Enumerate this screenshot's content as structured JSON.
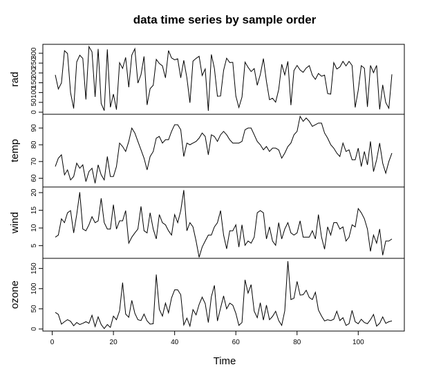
{
  "title": "data time series by sample order",
  "chart_data": {
    "type": "line",
    "title": "data time series by sample order",
    "xlabel": "Time",
    "xlim": [
      1,
      111
    ],
    "xticks": [
      0,
      20,
      40,
      60,
      80,
      100
    ],
    "panels": [
      {
        "name": "rad",
        "ylabel": "rad",
        "ylim": [
          0,
          335
        ],
        "yticks": [
          0,
          50,
          100,
          150,
          200,
          250,
          300
        ],
        "values": [
          190,
          118,
          149,
          313,
          299,
          99,
          19,
          256,
          290,
          274,
          65,
          334,
          307,
          78,
          322,
          44,
          8,
          320,
          25,
          92,
          13,
          252,
          223,
          279,
          127,
          291,
          323,
          148,
          191,
          284,
          37,
          120,
          137,
          269,
          248,
          236,
          175,
          314,
          276,
          267,
          272,
          175,
          264,
          175,
          48,
          260,
          274,
          285,
          187,
          220,
          7,
          294,
          223,
          81,
          82,
          213,
          275,
          253,
          254,
          83,
          24,
          77,
          255,
          229,
          207,
          222,
          137,
          192,
          273,
          157,
          64,
          71,
          51,
          115,
          244,
          190,
          259,
          36,
          212,
          238,
          215,
          203,
          225,
          237,
          188,
          167,
          197,
          183,
          189,
          95,
          92,
          252,
          220,
          230,
          259,
          236,
          259,
          238,
          24,
          112,
          237,
          224,
          27,
          238,
          201,
          238,
          14,
          139,
          49,
          20,
          193
        ]
      },
      {
        "name": "temp",
        "ylabel": "temp",
        "ylim": [
          56,
          97
        ],
        "yticks": [
          60,
          70,
          80,
          90
        ],
        "values": [
          67,
          72,
          74,
          62,
          65,
          59,
          61,
          69,
          66,
          68,
          58,
          64,
          66,
          57,
          68,
          62,
          59,
          73,
          61,
          61,
          67,
          81,
          79,
          76,
          82,
          90,
          87,
          82,
          77,
          72,
          65,
          73,
          76,
          84,
          85,
          81,
          83,
          83,
          88,
          92,
          92,
          89,
          73,
          81,
          80,
          81,
          82,
          84,
          87,
          85,
          74,
          86,
          85,
          82,
          86,
          88,
          86,
          83,
          81,
          81,
          81,
          82,
          89,
          90,
          90,
          86,
          82,
          80,
          77,
          79,
          76,
          78,
          78,
          77,
          72,
          75,
          79,
          81,
          86,
          88,
          97,
          94,
          96,
          94,
          91,
          92,
          93,
          93,
          87,
          84,
          80,
          78,
          75,
          73,
          81,
          76,
          77,
          71,
          71,
          78,
          67,
          76,
          68,
          82,
          64,
          71,
          81,
          69,
          63,
          70,
          75
        ]
      },
      {
        "name": "wind",
        "ylabel": "wind",
        "ylim": [
          2,
          21
        ],
        "yticks": [
          5,
          10,
          15,
          20
        ],
        "values": [
          7.4,
          8.0,
          12.6,
          11.5,
          14.3,
          14.9,
          8.6,
          13.8,
          20.1,
          9.7,
          9.2,
          10.9,
          13.2,
          11.5,
          12.0,
          18.4,
          11.5,
          9.7,
          9.7,
          16.6,
          9.7,
          12.0,
          12.0,
          14.9,
          5.7,
          7.4,
          8.6,
          9.7,
          16.1,
          9.2,
          8.6,
          14.3,
          9.7,
          6.9,
          13.8,
          11.5,
          10.9,
          9.2,
          8.0,
          13.8,
          11.5,
          14.9,
          20.7,
          9.2,
          11.5,
          10.3,
          6.3,
          1.7,
          4.6,
          6.3,
          8.0,
          8.0,
          10.3,
          11.5,
          14.9,
          8.0,
          4.1,
          9.2,
          9.2,
          10.9,
          4.6,
          10.9,
          5.1,
          6.3,
          5.7,
          7.4,
          14.3,
          14.9,
          14.3,
          6.9,
          10.3,
          6.3,
          5.1,
          11.5,
          6.9,
          9.7,
          11.5,
          8.6,
          8.0,
          8.6,
          12.0,
          7.4,
          7.4,
          7.4,
          9.2,
          6.9,
          13.8,
          7.4,
          4.0,
          10.3,
          8.0,
          11.5,
          11.5,
          9.7,
          10.3,
          6.3,
          7.4,
          10.9,
          10.3,
          15.5,
          14.3,
          12.6,
          9.7,
          3.4,
          8.0,
          5.7,
          9.7,
          2.3,
          6.3,
          6.3,
          6.9
        ]
      },
      {
        "name": "ozone",
        "ylabel": "ozone",
        "ylim": [
          0,
          170
        ],
        "yticks": [
          0,
          50,
          100,
          150
        ],
        "values": [
          41,
          36,
          12,
          18,
          23,
          19,
          8,
          16,
          11,
          14,
          18,
          14,
          34,
          6,
          30,
          11,
          1,
          11,
          4,
          32,
          23,
          45,
          115,
          37,
          29,
          71,
          39,
          23,
          21,
          37,
          20,
          12,
          13,
          135,
          49,
          32,
          64,
          40,
          77,
          97,
          97,
          85,
          10,
          27,
          7,
          48,
          35,
          61,
          79,
          63,
          16,
          80,
          108,
          20,
          52,
          82,
          50,
          64,
          59,
          39,
          9,
          16,
          122,
          89,
          110,
          44,
          28,
          65,
          22,
          59,
          23,
          31,
          44,
          21,
          9,
          45,
          168,
          73,
          76,
          118,
          84,
          85,
          96,
          78,
          73,
          91,
          47,
          32,
          20,
          23,
          21,
          24,
          44,
          21,
          28,
          9,
          13,
          46,
          18,
          13,
          24,
          16,
          13,
          23,
          36,
          7,
          14,
          30,
          14,
          18,
          20
        ]
      }
    ]
  }
}
